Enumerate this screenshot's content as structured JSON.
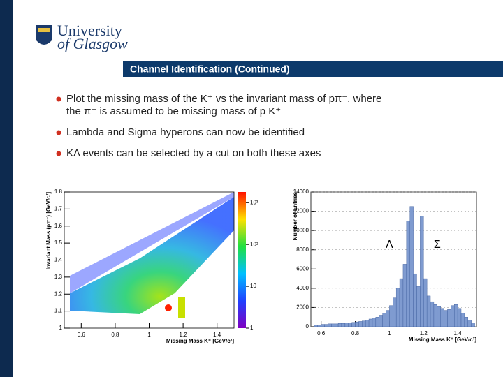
{
  "header": {
    "logo_line1": "University",
    "logo_line2": "of Glasgow",
    "title": "Channel Identification (Continued)"
  },
  "bullets": [
    "Plot the missing mass of the K⁺ vs the invariant mass of pπ⁻, where the π⁻ is assumed to be missing mass of p K⁺",
    "Lambda and Sigma hyperons can now be identified",
    "KΛ events can be selected by a cut on both these axes"
  ],
  "chart_data": [
    {
      "type": "heatmap",
      "x_label": "Missing Mass K⁺ [GeV/c²]",
      "y_label": "Invariant Mass (pπ⁻) [GeV/c²]",
      "xlim": [
        0.5,
        1.5
      ],
      "xticks": [
        0.6,
        0.8,
        1,
        1.2,
        1.4
      ],
      "ylim": [
        1,
        1.8
      ],
      "yticks": [
        1,
        1.1,
        1.2,
        1.3,
        1.4,
        1.5,
        1.6,
        1.7,
        1.8
      ],
      "zlim": [
        1,
        1800
      ],
      "zlog": true,
      "zticks": [
        1,
        10,
        {
          "value": 100,
          "label": "10²"
        },
        {
          "value": 1000,
          "label": "10³"
        }
      ]
    },
    {
      "type": "histogram",
      "x_label": "Missing Mass K⁺ [GeV/c²]",
      "y_label": "Number of Entries",
      "color": "#7f9bd0",
      "xlim": [
        0.54,
        1.51
      ],
      "xticks": [
        0.6,
        0.8,
        1,
        1.2,
        1.4
      ],
      "ylim": [
        0,
        14000
      ],
      "yticks": [
        0,
        2000,
        4000,
        6000,
        8000,
        10000,
        12000,
        14000
      ],
      "bins": [
        0.56,
        0.58,
        0.6,
        0.62,
        0.64,
        0.66,
        0.68,
        0.7,
        0.72,
        0.74,
        0.76,
        0.78,
        0.8,
        0.82,
        0.84,
        0.86,
        0.88,
        0.9,
        0.92,
        0.94,
        0.96,
        0.98,
        1,
        1.02,
        1.04,
        1.06,
        1.08,
        1.1,
        1.12,
        1.14,
        1.16,
        1.18,
        1.2,
        1.22,
        1.24,
        1.26,
        1.28,
        1.3,
        1.32,
        1.34,
        1.36,
        1.38,
        1.4,
        1.42,
        1.44,
        1.46,
        1.48,
        1.5
      ],
      "values": [
        200,
        200,
        250,
        250,
        300,
        300,
        300,
        350,
        350,
        400,
        400,
        450,
        500,
        550,
        600,
        700,
        800,
        900,
        1000,
        1200,
        1400,
        1700,
        2200,
        3000,
        4000,
        5000,
        6500,
        11000,
        12500,
        5500,
        4200,
        11500,
        5000,
        3200,
        2600,
        2300,
        2100,
        1900,
        1700,
        1800,
        2200,
        2300,
        1900,
        1400,
        1000,
        700,
        400
      ],
      "annotations": [
        {
          "text": "Λ",
          "x": 1.0,
          "y": 8500
        },
        {
          "text": "Σ",
          "x": 1.28,
          "y": 8500
        }
      ]
    }
  ]
}
